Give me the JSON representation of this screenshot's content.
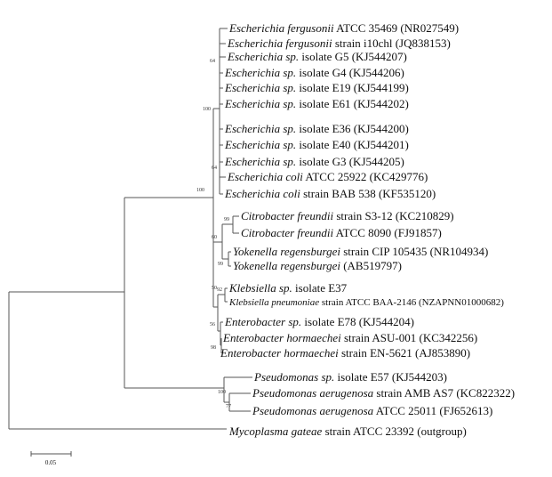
{
  "leaves": [
    {
      "name": "Escherichia fergusonii",
      "strain": "ATCC 35469 (NR027549)"
    },
    {
      "name": "Escherichia fergusonii",
      "strain": "strain i10chl (JQ838153)"
    },
    {
      "name": "Escherichia sp.",
      "strain": "isolate G5 (KJ544207)"
    },
    {
      "name": "Escherichia sp.",
      "strain": "isolate G4 (KJ544206)"
    },
    {
      "name": "Escherichia sp.",
      "strain": "isolate E19 (KJ544199)"
    },
    {
      "name": "Escherichia sp.",
      "strain": "isolate E61 (KJ544202)"
    },
    {
      "name": "Escherichia sp.",
      "strain": "isolate E36 (KJ544200)"
    },
    {
      "name": "Escherichia sp.",
      "strain": "isolate E40 (KJ544201)"
    },
    {
      "name": "Escherichia sp.",
      "strain": "isolate G3 (KJ544205)"
    },
    {
      "name": "Escherichia coli",
      "strain": "ATCC 25922 (KC429776)"
    },
    {
      "name": "Escherichia coli",
      "strain": "strain BAB 538 (KF535120)"
    },
    {
      "name": "Citrobacter freundii",
      "strain": "strain S3-12 (KC210829)"
    },
    {
      "name": "Citrobacter freundii",
      "strain": "ATCC 8090 (FJ91857)"
    },
    {
      "name": "Yokenella regensburgei",
      "strain": "strain CIP 105435 (NR104934)"
    },
    {
      "name": "Yokenella regensburgei",
      "strain": "(AB519797)"
    },
    {
      "name": "Klebsiella sp.",
      "strain": "isolate E37"
    },
    {
      "name": "Klebsiella pneumoniae",
      "strain": "strain ATCC BAA-2146 (NZAPNN01000682)"
    },
    {
      "name": "Enterobacter sp.",
      "strain": "isolate E78 (KJ544204)"
    },
    {
      "name": "Enterobacter hormaechei",
      "strain": "strain ASU-001 (KC342256)"
    },
    {
      "name": "Enterobacter hormaechei",
      "strain": "strain EN-5621 (AJ853890)"
    },
    {
      "name": "Pseudomonas sp.",
      "strain": "isolate E57 (KJ544203)"
    },
    {
      "name": "Pseudomonas aerugenosa",
      "strain": "strain AMB AS7 (KC822322)"
    },
    {
      "name": "Pseudomonas aerugenosa",
      "strain": "ATCC 25011 (FJ652613)"
    },
    {
      "name": "Mycoplasma gateae",
      "strain": "strain ATCC 23392 (outgroup)"
    }
  ],
  "bootstrap": [
    64,
    100,
    64,
    100,
    99,
    60,
    99,
    92,
    50,
    56,
    98,
    100,
    77
  ],
  "scale_bar": {
    "label": "0.05"
  }
}
